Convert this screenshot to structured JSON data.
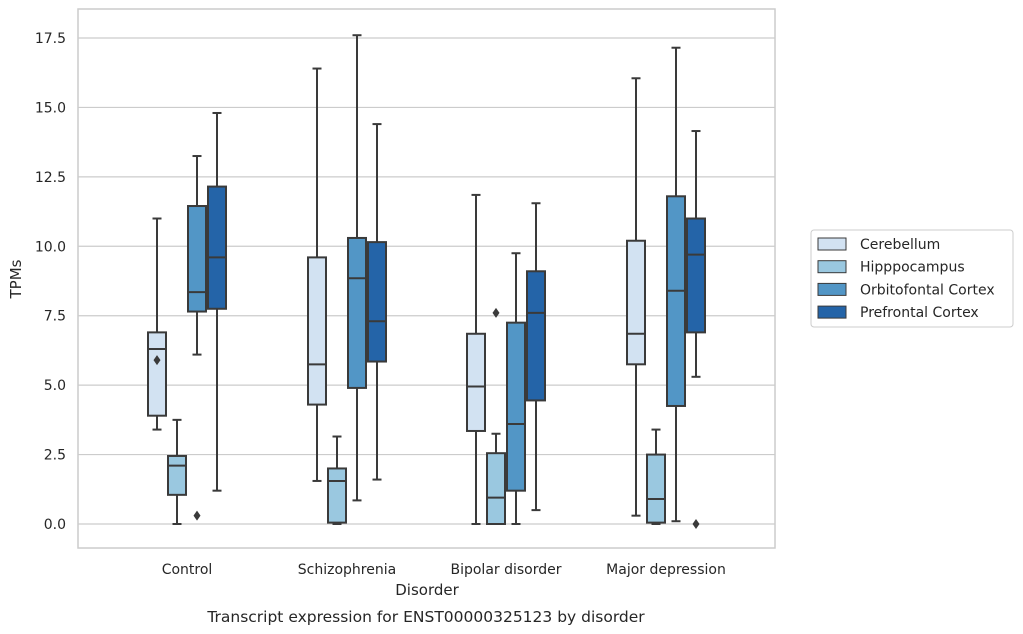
{
  "chart_data": {
    "type": "box",
    "caption": "Transcript expression for ENST00000325123 by disorder",
    "xlabel": "Disorder",
    "ylabel": "TPMs",
    "ylim": [
      -0.9,
      18.5
    ],
    "yticks": [
      0.0,
      2.5,
      5.0,
      7.5,
      10.0,
      12.5,
      15.0,
      17.5
    ],
    "ytick_labels": [
      "0.0",
      "2.5",
      "5.0",
      "7.5",
      "10.0",
      "12.5",
      "15.0",
      "17.5"
    ],
    "grid": "horizontal",
    "legend_position": "right",
    "categories": [
      "Control",
      "Schizophrenia",
      "Bipolar disorder",
      "Major depression"
    ],
    "series": [
      {
        "name": "Cerebellum",
        "color": "#d2e2f2",
        "boxes": [
          {
            "whislo": 3.4,
            "q1": 3.9,
            "med": 6.3,
            "q3": 6.9,
            "whishi": 11.0,
            "fliers": [
              5.9
            ]
          },
          {
            "whislo": 1.55,
            "q1": 4.3,
            "med": 5.75,
            "q3": 9.6,
            "whishi": 16.4,
            "fliers": []
          },
          {
            "whislo": 0.0,
            "q1": 3.35,
            "med": 4.95,
            "q3": 6.85,
            "whishi": 11.85,
            "fliers": []
          },
          {
            "whislo": 0.3,
            "q1": 5.75,
            "med": 6.85,
            "q3": 10.2,
            "whishi": 16.05,
            "fliers": []
          }
        ]
      },
      {
        "name": "Hipppocampus",
        "color": "#9ac8e0",
        "boxes": [
          {
            "whislo": 0.0,
            "q1": 1.05,
            "med": 2.1,
            "q3": 2.45,
            "whishi": 3.75,
            "fliers": []
          },
          {
            "whislo": 0.0,
            "q1": 0.05,
            "med": 1.55,
            "q3": 2.0,
            "whishi": 3.15,
            "fliers": []
          },
          {
            "whislo": 0.0,
            "q1": 0.0,
            "med": 0.95,
            "q3": 2.55,
            "whishi": 3.25,
            "fliers": [
              7.6
            ]
          },
          {
            "whislo": 0.0,
            "q1": 0.05,
            "med": 0.9,
            "q3": 2.5,
            "whishi": 3.4,
            "fliers": []
          }
        ]
      },
      {
        "name": "Orbitofontal Cortex",
        "color": "#5296c6",
        "boxes": [
          {
            "whislo": 6.1,
            "q1": 7.65,
            "med": 8.35,
            "q3": 11.45,
            "whishi": 13.25,
            "fliers": [
              0.3
            ]
          },
          {
            "whislo": 0.85,
            "q1": 4.9,
            "med": 8.85,
            "q3": 10.3,
            "whishi": 17.6,
            "fliers": []
          },
          {
            "whislo": 0.0,
            "q1": 1.2,
            "med": 3.6,
            "q3": 7.25,
            "whishi": 9.75,
            "fliers": []
          },
          {
            "whislo": 0.1,
            "q1": 4.25,
            "med": 8.4,
            "q3": 11.8,
            "whishi": 17.15,
            "fliers": []
          }
        ]
      },
      {
        "name": "Prefrontal Cortex",
        "color": "#2464a8",
        "boxes": [
          {
            "whislo": 1.2,
            "q1": 7.75,
            "med": 9.6,
            "q3": 12.15,
            "whishi": 14.8,
            "fliers": []
          },
          {
            "whislo": 1.6,
            "q1": 5.85,
            "med": 7.3,
            "q3": 10.15,
            "whishi": 14.4,
            "fliers": []
          },
          {
            "whislo": 0.5,
            "q1": 4.45,
            "med": 7.6,
            "q3": 9.1,
            "whishi": 11.55,
            "fliers": []
          },
          {
            "whislo": 5.3,
            "q1": 6.9,
            "med": 9.7,
            "q3": 11.0,
            "whishi": 14.15,
            "fliers": [
              0.0
            ]
          }
        ]
      }
    ]
  },
  "colors": {
    "grid": "#cccccc",
    "frame": "#cccccc",
    "box_edge": "#3a3a3a",
    "text": "#262626"
  }
}
